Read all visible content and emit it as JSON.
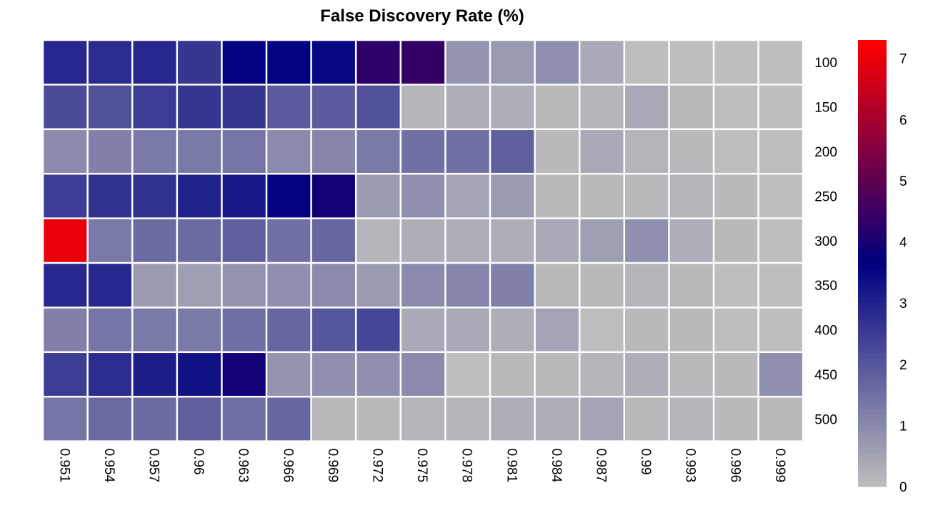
{
  "chart_data": {
    "type": "heatmap",
    "title": "False Discovery Rate (%)",
    "x_categories": [
      "0.951",
      "0.954",
      "0.957",
      "0.96",
      "0.963",
      "0.966",
      "0.969",
      "0.972",
      "0.975",
      "0.978",
      "0.981",
      "0.984",
      "0.987",
      "0.99",
      "0.993",
      "0.996",
      "0.999"
    ],
    "y_categories": [
      "100",
      "150",
      "200",
      "250",
      "300",
      "350",
      "400",
      "450",
      "500"
    ],
    "values": [
      [
        2.9,
        2.8,
        2.9,
        2.6,
        3.6,
        3.6,
        3.5,
        4.3,
        4.4,
        0.8,
        0.7,
        0.9,
        0.4,
        0.0,
        0.0,
        0.0,
        0.0
      ],
      [
        2.2,
        2.1,
        2.5,
        2.6,
        2.6,
        1.9,
        1.9,
        2.1,
        0.2,
        0.3,
        0.3,
        0.1,
        0.2,
        0.4,
        0.1,
        0.0,
        0.0
      ],
      [
        1.0,
        1.2,
        1.3,
        1.3,
        1.4,
        1.0,
        1.1,
        1.3,
        1.5,
        1.5,
        1.8,
        0.1,
        0.4,
        0.2,
        0.1,
        0.0,
        0.0
      ],
      [
        2.5,
        2.7,
        2.7,
        3.0,
        3.2,
        3.6,
        3.9,
        0.7,
        0.9,
        0.5,
        0.7,
        0.1,
        0.1,
        0.1,
        0.2,
        0.1,
        0.0
      ],
      [
        7.0,
        1.3,
        1.6,
        1.6,
        1.8,
        1.5,
        1.7,
        0.2,
        0.3,
        0.3,
        0.3,
        0.4,
        0.6,
        0.9,
        0.3,
        0.1,
        0.0
      ],
      [
        2.9,
        2.9,
        0.7,
        0.6,
        0.8,
        0.9,
        1.0,
        0.7,
        1.0,
        1.1,
        1.2,
        0.1,
        0.1,
        0.2,
        0.1,
        0.0,
        0.0
      ],
      [
        1.2,
        1.4,
        1.3,
        1.3,
        1.5,
        1.7,
        2.0,
        2.3,
        0.4,
        0.4,
        0.3,
        0.5,
        0.0,
        0.1,
        0.1,
        0.0,
        0.0
      ],
      [
        2.5,
        2.8,
        3.1,
        3.3,
        3.9,
        0.8,
        0.9,
        0.9,
        1.0,
        0.0,
        0.1,
        0.1,
        0.2,
        0.3,
        0.1,
        0.1,
        0.9
      ],
      [
        1.4,
        1.6,
        1.6,
        1.8,
        1.5,
        1.7,
        0.1,
        0.1,
        0.2,
        0.2,
        0.3,
        0.3,
        0.5,
        0.1,
        0.2,
        0.1,
        0.1
      ]
    ],
    "colorscale": {
      "min": 0,
      "max": 7.3,
      "stops": [
        {
          "value": 0,
          "color": "#bebebe"
        },
        {
          "value": 3.65,
          "color": "#000080"
        },
        {
          "value": 7.3,
          "color": "#ff0000"
        }
      ],
      "ticks": [
        "0",
        "1",
        "2",
        "3",
        "4",
        "5",
        "6",
        "7"
      ],
      "legend_position": "right"
    },
    "y_axis_position": "right",
    "x_label_rotation": "vertical"
  }
}
